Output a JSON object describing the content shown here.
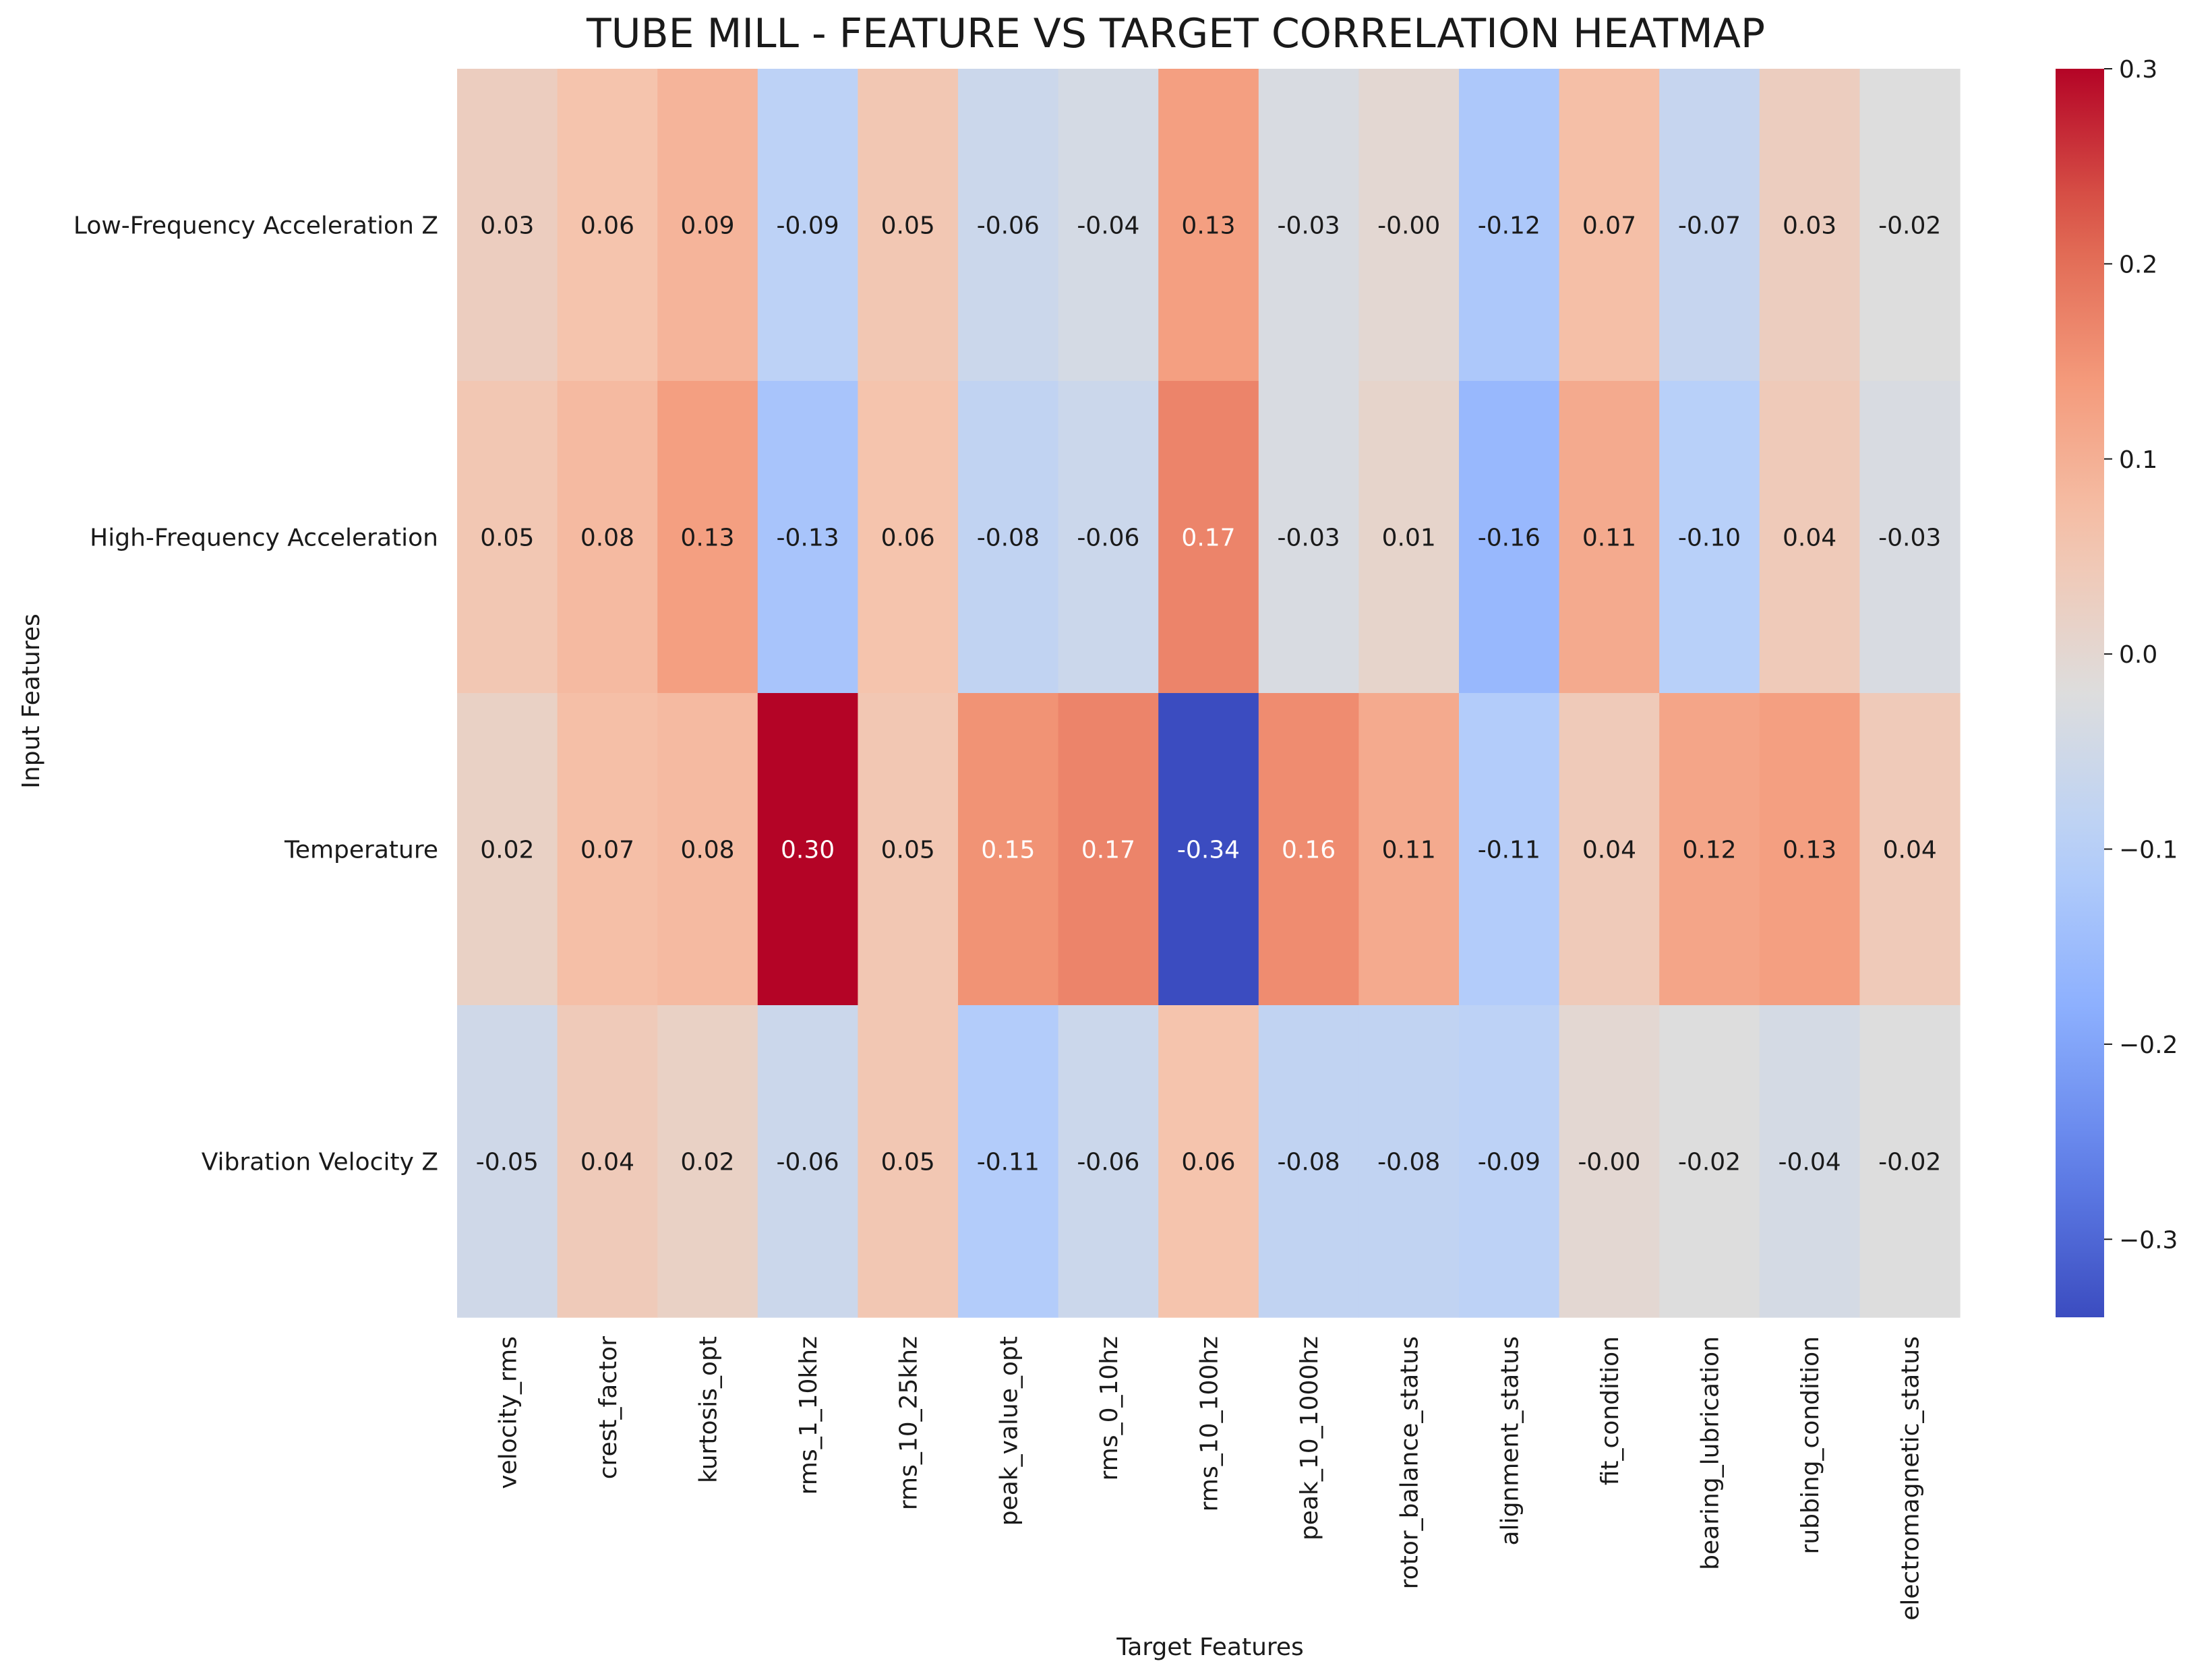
{
  "chart_data": {
    "type": "heatmap",
    "title": "TUBE MILL - FEATURE VS TARGET CORRELATION HEATMAP",
    "xlabel": "Target Features",
    "ylabel": "Input Features",
    "rows": [
      "Low-Frequency Acceleration Z",
      "High-Frequency Acceleration",
      "Temperature",
      "Vibration Velocity Z"
    ],
    "columns": [
      "velocity_rms",
      "crest_factor",
      "kurtosis_opt",
      "rms_1_10khz",
      "rms_10_25khz",
      "peak_value_opt",
      "rms_0_10hz",
      "rms_10_100hz",
      "peak_10_1000hz",
      "rotor_balance_status",
      "alignment_status",
      "fit_condition",
      "bearing_lubrication",
      "rubbing_condition",
      "electromagnetic_status"
    ],
    "values": [
      [
        0.03,
        0.06,
        0.09,
        -0.09,
        0.05,
        -0.06,
        -0.04,
        0.13,
        -0.03,
        -0.001,
        -0.12,
        0.07,
        -0.07,
        0.03,
        -0.02
      ],
      [
        0.05,
        0.08,
        0.13,
        -0.13,
        0.06,
        -0.08,
        -0.06,
        0.17,
        -0.03,
        0.01,
        -0.16,
        0.11,
        -0.1,
        0.04,
        -0.03
      ],
      [
        0.02,
        0.07,
        0.08,
        0.3,
        0.05,
        0.15,
        0.17,
        -0.34,
        0.16,
        0.11,
        -0.11,
        0.04,
        0.12,
        0.13,
        0.04
      ],
      [
        -0.05,
        0.04,
        0.02,
        -0.06,
        0.05,
        -0.11,
        -0.06,
        0.06,
        -0.08,
        -0.08,
        -0.09,
        -0.001,
        -0.02,
        -0.04,
        -0.02
      ]
    ],
    "value_format": "2 decimals",
    "colormap": "coolwarm",
    "vmin": -0.34,
    "vmax": 0.3,
    "colorbar_ticks": [
      "0.3",
      "0.2",
      "0.1",
      "0.0",
      "−0.1",
      "−0.2",
      "−0.3"
    ],
    "colorbar_tick_values": [
      0.3,
      0.2,
      0.1,
      0.0,
      -0.1,
      -0.2,
      -0.3
    ],
    "grid": false,
    "legend": "colorbar-right"
  }
}
